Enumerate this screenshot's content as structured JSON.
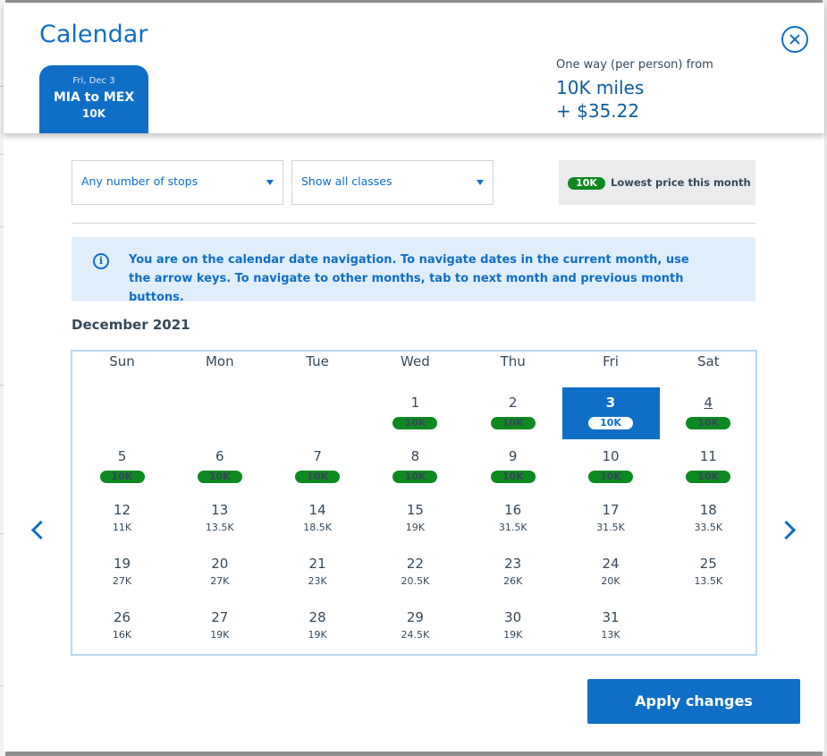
{
  "modal": {
    "title": "Calendar",
    "close_label": "Close"
  },
  "trip_tab": {
    "date": "Fri, Dec 3",
    "route": "MIA to MEX",
    "miles": "10K"
  },
  "fare_summary": {
    "label": "One way (per person) from",
    "miles": "10K miles",
    "taxes": "+ $35.22"
  },
  "filters": {
    "stops": "Any number of stops",
    "classes": "Show all classes"
  },
  "legend": {
    "pill": "10K",
    "text": "Lowest price this month"
  },
  "info": {
    "icon": "info-icon",
    "text": "You are on the calendar date navigation. To navigate dates in the current month, use the arrow keys. To navigate to other months, tab to next month and previous month buttons."
  },
  "calendar": {
    "month": "December 2021",
    "weekdays": [
      "Sun",
      "Mon",
      "Tue",
      "Wed",
      "Thu",
      "Fri",
      "Sat"
    ],
    "first_weekday_index": 3,
    "days": [
      {
        "day": "1",
        "price": "10K",
        "lowest": true
      },
      {
        "day": "2",
        "price": "10K",
        "lowest": true
      },
      {
        "day": "3",
        "price": "10K",
        "lowest": true,
        "selected": true
      },
      {
        "day": "4",
        "price": "10K",
        "lowest": true,
        "focused": true
      },
      {
        "day": "5",
        "price": "10K",
        "lowest": true
      },
      {
        "day": "6",
        "price": "10K",
        "lowest": true
      },
      {
        "day": "7",
        "price": "10K",
        "lowest": true
      },
      {
        "day": "8",
        "price": "10K",
        "lowest": true
      },
      {
        "day": "9",
        "price": "10K",
        "lowest": true
      },
      {
        "day": "10",
        "price": "10K",
        "lowest": true
      },
      {
        "day": "11",
        "price": "10K",
        "lowest": true
      },
      {
        "day": "12",
        "price": "11K"
      },
      {
        "day": "13",
        "price": "13.5K"
      },
      {
        "day": "14",
        "price": "18.5K"
      },
      {
        "day": "15",
        "price": "19K"
      },
      {
        "day": "16",
        "price": "31.5K"
      },
      {
        "day": "17",
        "price": "31.5K"
      },
      {
        "day": "18",
        "price": "33.5K"
      },
      {
        "day": "19",
        "price": "27K"
      },
      {
        "day": "20",
        "price": "27K"
      },
      {
        "day": "21",
        "price": "23K"
      },
      {
        "day": "22",
        "price": "20.5K"
      },
      {
        "day": "23",
        "price": "26K"
      },
      {
        "day": "24",
        "price": "20K"
      },
      {
        "day": "25",
        "price": "13.5K"
      },
      {
        "day": "26",
        "price": "16K"
      },
      {
        "day": "27",
        "price": "19K"
      },
      {
        "day": "28",
        "price": "19K"
      },
      {
        "day": "29",
        "price": "24.5K"
      },
      {
        "day": "30",
        "price": "19K"
      },
      {
        "day": "31",
        "price": "13K"
      }
    ]
  },
  "nav": {
    "prev_icon": "chevron-left-icon",
    "next_icon": "chevron-right-icon"
  },
  "apply_label": "Apply changes",
  "colors": {
    "accent": "#0f6fc6",
    "lowest_price": "#0d8a1f",
    "info_bg": "#e0eef9",
    "text": "#36495a"
  }
}
